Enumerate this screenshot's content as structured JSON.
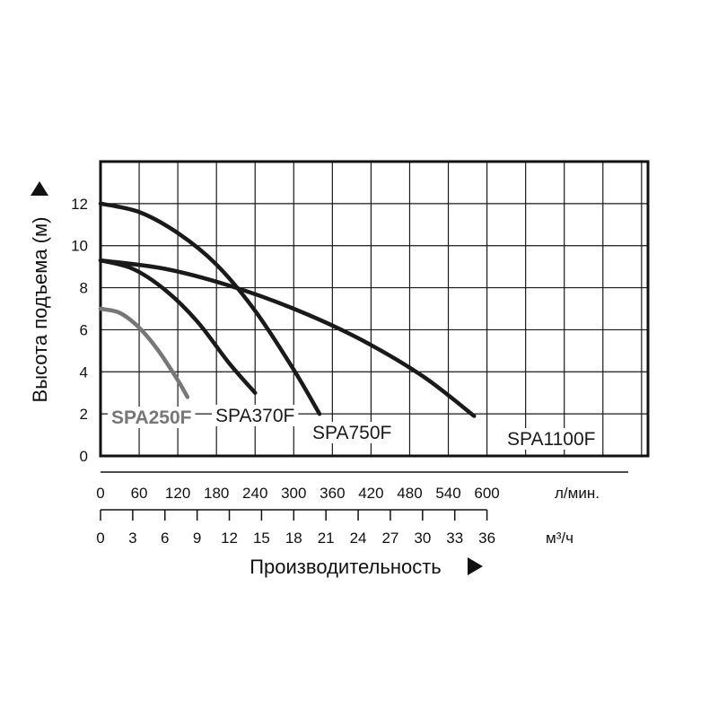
{
  "chart_data": {
    "type": "line",
    "ylabel": "Высота подъема (м)",
    "xlabel": "Производительность",
    "y_ticks": [
      "0",
      "2",
      "4",
      "6",
      "8",
      "10",
      "12"
    ],
    "ylim": [
      0,
      14
    ],
    "x_lpm_ticks": [
      "0",
      "60",
      "120",
      "180",
      "240",
      "300",
      "360",
      "420",
      "480",
      "540",
      "600"
    ],
    "x_lpm_unit": "л/мин.",
    "xlim_lpm": [
      0,
      850
    ],
    "x_m3h_ticks": [
      "0",
      "3",
      "6",
      "9",
      "12",
      "15",
      "18",
      "21",
      "24",
      "27",
      "30",
      "33",
      "36"
    ],
    "x_m3h_unit": "м³/ч",
    "grid": true,
    "series": [
      {
        "name": "SPA250F",
        "color": "#777777",
        "x": [
          0,
          30,
          60,
          90,
          120,
          135
        ],
        "y": [
          7.0,
          6.8,
          6.1,
          5.0,
          3.6,
          2.8
        ]
      },
      {
        "name": "SPA370F",
        "color": "#1a1a1a",
        "x": [
          0,
          50,
          100,
          150,
          200,
          240
        ],
        "y": [
          9.3,
          8.9,
          7.9,
          6.4,
          4.4,
          3.0
        ]
      },
      {
        "name": "SPA750F",
        "color": "#1a1a1a",
        "x": [
          0,
          60,
          120,
          180,
          240,
          300,
          340
        ],
        "y": [
          12.0,
          11.6,
          10.6,
          9.1,
          6.9,
          4.1,
          2.0
        ]
      },
      {
        "name": "SPA1100F",
        "color": "#1a1a1a",
        "x": [
          0,
          100,
          200,
          300,
          400,
          500,
          580
        ],
        "y": [
          9.3,
          8.9,
          8.1,
          7.0,
          5.6,
          3.8,
          1.9
        ]
      }
    ]
  }
}
